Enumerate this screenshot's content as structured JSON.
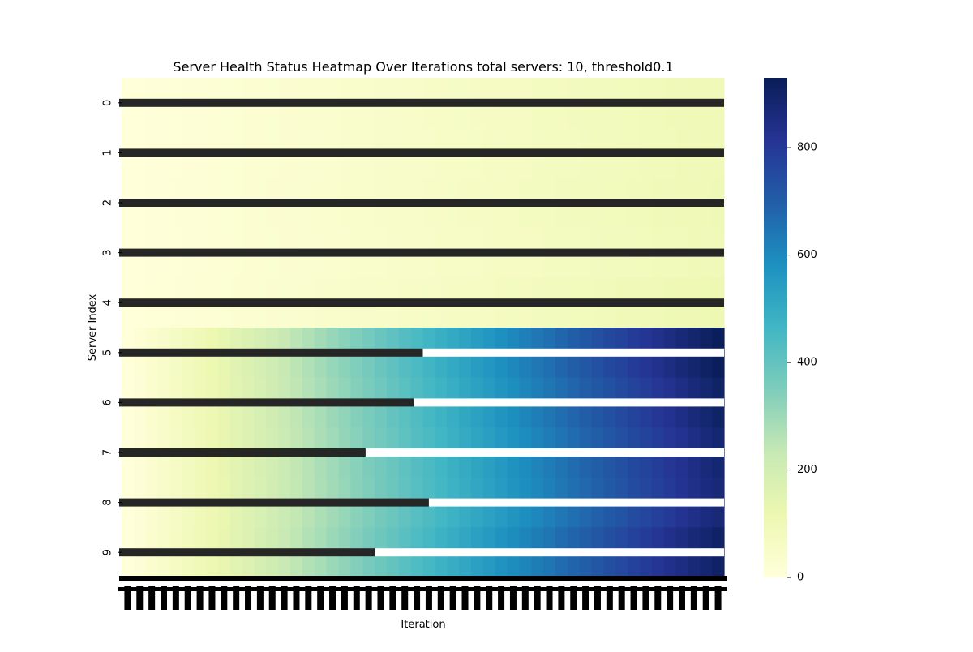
{
  "chart_data": {
    "type": "heatmap",
    "title": "Server Health Status Heatmap Over Iterations total servers: 10, threshold0.1",
    "xlabel": "Iteration",
    "ylabel": "Server Index",
    "y_tick_labels": [
      "0",
      "1",
      "2",
      "3",
      "4",
      "5",
      "6",
      "7",
      "8",
      "9"
    ],
    "colorbar": {
      "colormap": "YlGnBu",
      "range": [
        0,
        930
      ],
      "ticks": [
        0,
        200,
        400,
        600,
        800
      ]
    },
    "n_iterations": 50,
    "servers": [
      {
        "index": 0,
        "start": 0,
        "end": 100,
        "annotation_end_fraction": 1.0
      },
      {
        "index": 1,
        "start": 0,
        "end": 98,
        "annotation_end_fraction": 1.0
      },
      {
        "index": 2,
        "start": 0,
        "end": 102,
        "annotation_end_fraction": 1.0
      },
      {
        "index": 3,
        "start": 0,
        "end": 96,
        "annotation_end_fraction": 1.0
      },
      {
        "index": 4,
        "start": 0,
        "end": 110,
        "annotation_end_fraction": 1.0
      },
      {
        "index": 5,
        "start": 0,
        "end": 925,
        "dip_fraction": 0.16,
        "annotation_end_fraction": 0.5
      },
      {
        "index": 6,
        "start": 0,
        "end": 900,
        "dip_fraction": 0.12,
        "annotation_end_fraction": 0.485
      },
      {
        "index": 7,
        "start": 0,
        "end": 880,
        "dip_fraction": 0.1,
        "annotation_end_fraction": 0.405
      },
      {
        "index": 8,
        "start": 0,
        "end": 870,
        "dip_fraction": 0.2,
        "annotation_end_fraction": 0.51
      },
      {
        "index": 9,
        "start": 0,
        "end": 905,
        "dip_fraction": 0.14,
        "annotation_end_fraction": 0.42
      }
    ]
  }
}
